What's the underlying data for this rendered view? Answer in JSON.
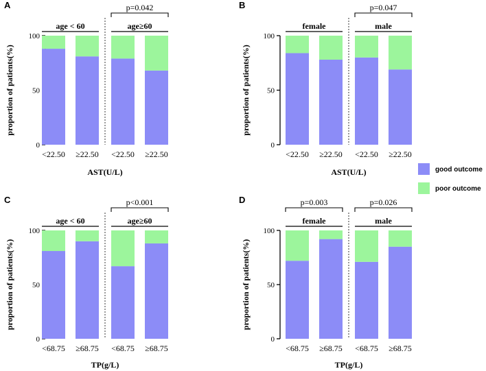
{
  "colors": {
    "good": "#8C8CF7",
    "poor": "#9CF59C"
  },
  "legend": [
    {
      "key": "good",
      "label": "good outcome"
    },
    {
      "key": "poor",
      "label": "poor outcome"
    }
  ],
  "chart_data": [
    {
      "panel": "A",
      "type": "bar",
      "stacked": true,
      "title": "",
      "xlabel": "AST(U/L)",
      "ylabel": "proportion of patients(%)",
      "ylim": [
        0,
        100
      ],
      "yticks": [
        "0",
        "50",
        "100"
      ],
      "categories": [
        "<22.50",
        "≥22.50",
        "<22.50",
        "≥22.50"
      ],
      "groups": [
        {
          "label": "age < 60",
          "bars": [
            0,
            1
          ]
        },
        {
          "label": "age≥60",
          "bars": [
            2,
            3
          ]
        }
      ],
      "pvalues": [
        {
          "text": "p=0.042",
          "bars": [
            2,
            3
          ]
        }
      ],
      "series": [
        {
          "name": "good outcome",
          "values": [
            88,
            81,
            79,
            68
          ]
        },
        {
          "name": "poor outcome",
          "values": [
            12,
            19,
            21,
            32
          ]
        }
      ]
    },
    {
      "panel": "B",
      "type": "bar",
      "stacked": true,
      "title": "",
      "xlabel": "AST(U/L)",
      "ylabel": "proportion of patients(%)",
      "ylim": [
        0,
        100
      ],
      "yticks": [
        "0",
        "50",
        "100"
      ],
      "categories": [
        "<22.50",
        "≥22.50",
        "<22.50",
        "≥22.50"
      ],
      "groups": [
        {
          "label": "female",
          "bars": [
            0,
            1
          ]
        },
        {
          "label": "male",
          "bars": [
            2,
            3
          ]
        }
      ],
      "pvalues": [
        {
          "text": "p=0.047",
          "bars": [
            2,
            3
          ]
        }
      ],
      "series": [
        {
          "name": "good outcome",
          "values": [
            84,
            78,
            80,
            69
          ]
        },
        {
          "name": "poor outcome",
          "values": [
            16,
            22,
            20,
            31
          ]
        }
      ]
    },
    {
      "panel": "C",
      "type": "bar",
      "stacked": true,
      "title": "",
      "xlabel": "TP(g/L)",
      "ylabel": "proportion of patients(%)",
      "ylim": [
        0,
        100
      ],
      "yticks": [
        "0",
        "50",
        "100"
      ],
      "categories": [
        "<68.75",
        "≥68.75",
        "<68.75",
        "≥68.75"
      ],
      "groups": [
        {
          "label": "age < 60",
          "bars": [
            0,
            1
          ]
        },
        {
          "label": "age≥60",
          "bars": [
            2,
            3
          ]
        }
      ],
      "pvalues": [
        {
          "text": "p<0.001",
          "bars": [
            2,
            3
          ]
        }
      ],
      "series": [
        {
          "name": "good outcome",
          "values": [
            81,
            90,
            67,
            88
          ]
        },
        {
          "name": "poor outcome",
          "values": [
            19,
            10,
            33,
            12
          ]
        }
      ]
    },
    {
      "panel": "D",
      "type": "bar",
      "stacked": true,
      "title": "",
      "xlabel": "TP(g/L)",
      "ylabel": "proportion of patients(%)",
      "ylim": [
        0,
        100
      ],
      "yticks": [
        "0",
        "50",
        "100"
      ],
      "categories": [
        "<68.75",
        "≥68.75",
        "<68.75",
        "≥68.75"
      ],
      "groups": [
        {
          "label": "female",
          "bars": [
            0,
            1
          ]
        },
        {
          "label": "male",
          "bars": [
            2,
            3
          ]
        }
      ],
      "pvalues": [
        {
          "text": "p=0.003",
          "bars": [
            0,
            1
          ]
        },
        {
          "text": "p=0.026",
          "bars": [
            2,
            3
          ]
        }
      ],
      "series": [
        {
          "name": "good outcome",
          "values": [
            72,
            92,
            71,
            85
          ]
        },
        {
          "name": "poor outcome",
          "values": [
            28,
            8,
            29,
            15
          ]
        }
      ]
    }
  ]
}
